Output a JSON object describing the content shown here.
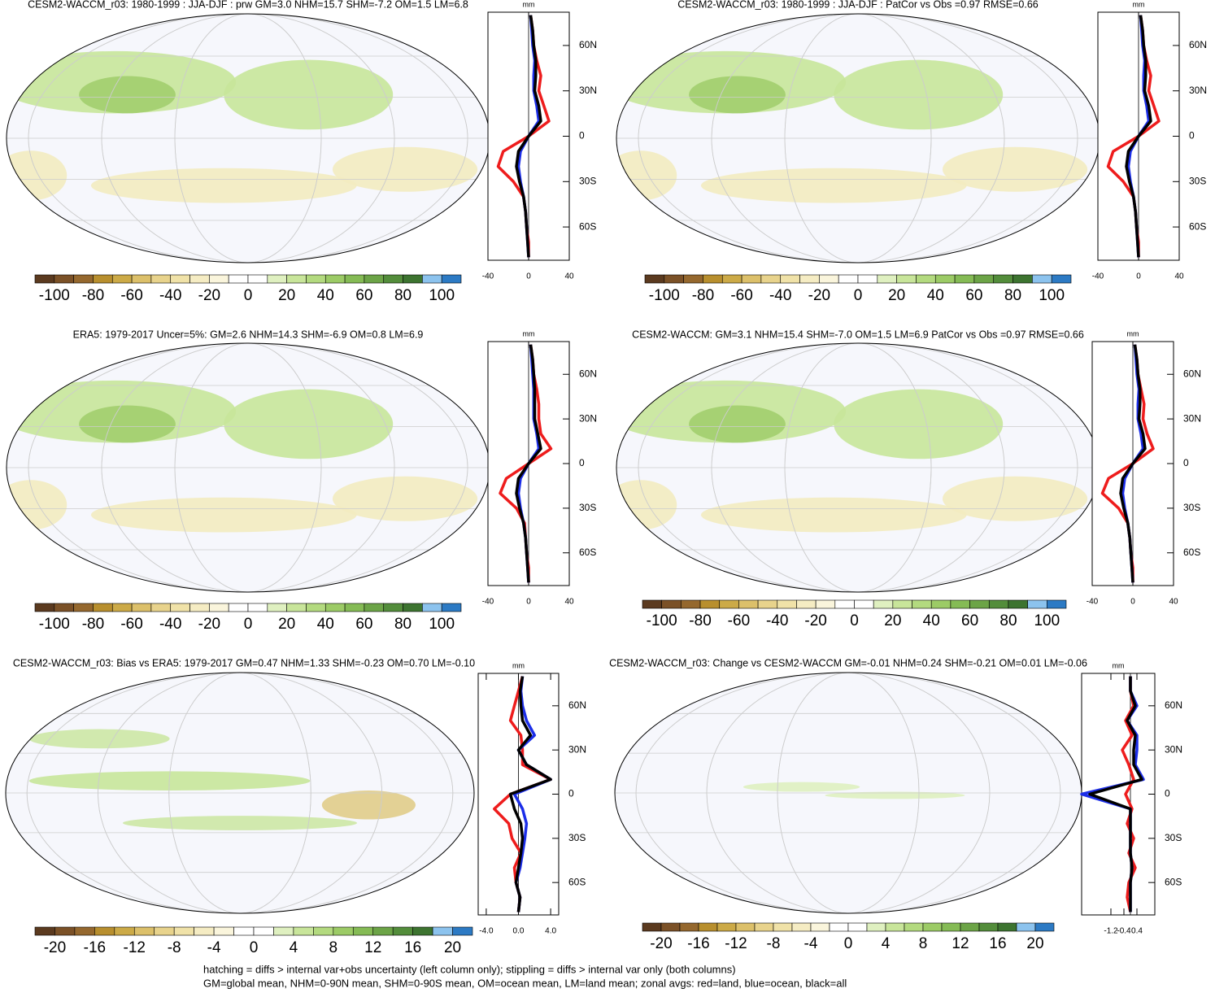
{
  "chart_data": {
    "type": "map-panels",
    "zonal_type": "line",
    "colors": [
      "#5b3a1f",
      "#7b5127",
      "#95682e",
      "#b88f2e",
      "#ccaa47",
      "#dcc06a",
      "#e8d38c",
      "#f0e2a8",
      "#f5ecc3",
      "#faf5dc",
      "#ffffff",
      "#ffffff",
      "#dff0c0",
      "#c8e59a",
      "#b3da7f",
      "#9ccb66",
      "#85bb55",
      "#6ca447",
      "#538d3b",
      "#3d7430",
      "#8cc3ee",
      "#2c7ac4"
    ],
    "panels": [
      {
        "title": "CESM2-WACCM_r03: 1980-1999 : JJA-DJF : prw GM=3.0 NHM=15.7 SHM=-7.2 OM=1.5 LM=6.8",
        "zonal_unit": "mm",
        "colorbar_ticks": [
          -100,
          -80,
          -60,
          -40,
          -20,
          0,
          20,
          40,
          60,
          80,
          100
        ],
        "xlim": [
          -40,
          40
        ],
        "xticks": [
          -40,
          0,
          40
        ],
        "ylim": [
          -82,
          82
        ],
        "yticks": [
          {
            "value": 60,
            "label": "60N"
          },
          {
            "value": 30,
            "label": "30N"
          },
          0,
          {
            "value": -30,
            "label": "30S"
          },
          {
            "value": -60,
            "label": "60S"
          }
        ],
        "x": [
          -80,
          -70,
          -60,
          -50,
          -40,
          -30,
          -20,
          -10,
          0,
          10,
          20,
          30,
          40,
          50,
          60,
          70,
          80
        ],
        "series": [
          {
            "color": "#ee1c1c",
            "values": [
              0,
              0,
              -2,
              -3,
              -5,
              -15,
              -30,
              -25,
              0,
              20,
              15,
              10,
              12,
              8,
              5,
              4,
              2
            ]
          },
          {
            "color": "#1c2ee8",
            "values": [
              0,
              -1,
              -2,
              -3,
              -5,
              -8,
              -10,
              -8,
              0,
              10,
              8,
              5,
              5,
              6,
              4,
              3,
              2
            ]
          },
          {
            "color": "#000000",
            "values": [
              0,
              -1,
              -2,
              -3,
              -5,
              -9,
              -12,
              -10,
              0,
              12,
              10,
              6,
              7,
              7,
              5,
              4,
              2
            ]
          }
        ]
      },
      {
        "title": "CESM2-WACCM_r03: 1980-1999 : JJA-DJF : PatCor vs Obs =0.97 RMSE=0.66",
        "zonal_unit": "mm",
        "colorbar_ticks": [
          -100,
          -80,
          -60,
          -40,
          -20,
          0,
          20,
          40,
          60,
          80,
          100
        ],
        "xlim": [
          -40,
          40
        ],
        "xticks": [
          -40,
          0,
          40
        ],
        "ylim": [
          -82,
          82
        ],
        "yticks": [
          {
            "value": 60,
            "label": "60N"
          },
          {
            "value": 30,
            "label": "30N"
          },
          0,
          {
            "value": -30,
            "label": "30S"
          },
          {
            "value": -60,
            "label": "60S"
          }
        ],
        "x": [
          -80,
          -70,
          -60,
          -50,
          -40,
          -30,
          -20,
          -10,
          0,
          10,
          20,
          30,
          40,
          50,
          60,
          70,
          80
        ],
        "series": [
          {
            "color": "#ee1c1c",
            "values": [
              0,
              0,
              -2,
              -3,
              -5,
              -15,
              -30,
              -25,
              0,
              20,
              15,
              10,
              12,
              8,
              5,
              4,
              2
            ]
          },
          {
            "color": "#1c2ee8",
            "values": [
              0,
              -1,
              -2,
              -3,
              -5,
              -8,
              -10,
              -8,
              0,
              10,
              8,
              5,
              5,
              6,
              4,
              3,
              2
            ]
          },
          {
            "color": "#000000",
            "values": [
              0,
              -1,
              -2,
              -3,
              -5,
              -9,
              -12,
              -10,
              0,
              12,
              10,
              6,
              7,
              7,
              5,
              4,
              2
            ]
          }
        ]
      },
      {
        "title": "ERA5: 1979-2017 Uncer=5%: GM=2.6 NHM=14.3 SHM=-6.9 OM=0.8 LM=6.9",
        "zonal_unit": "mm",
        "colorbar_ticks": [
          -100,
          -80,
          -60,
          -40,
          -20,
          0,
          20,
          40,
          60,
          80,
          100
        ],
        "xlim": [
          -40,
          40
        ],
        "xticks": [
          -40,
          0,
          40
        ],
        "ylim": [
          -82,
          82
        ],
        "yticks": [
          {
            "value": 60,
            "label": "60N"
          },
          {
            "value": 30,
            "label": "30N"
          },
          0,
          {
            "value": -30,
            "label": "30S"
          },
          {
            "value": -60,
            "label": "60S"
          }
        ],
        "x": [
          -80,
          -70,
          -60,
          -50,
          -40,
          -30,
          -20,
          -10,
          0,
          10,
          20,
          30,
          40,
          50,
          60,
          70,
          80
        ],
        "series": [
          {
            "color": "#ee1c1c",
            "values": [
              0,
              0,
              -2,
              -3,
              -4,
              -12,
              -28,
              -22,
              0,
              22,
              12,
              10,
              10,
              8,
              5,
              4,
              2
            ]
          },
          {
            "color": "#1c2ee8",
            "values": [
              0,
              -1,
              -2,
              -3,
              -5,
              -8,
              -10,
              -8,
              0,
              10,
              8,
              5,
              5,
              5,
              4,
              3,
              2
            ]
          },
          {
            "color": "#000000",
            "values": [
              0,
              -1,
              -2,
              -3,
              -5,
              -9,
              -12,
              -10,
              0,
              12,
              9,
              6,
              6,
              6,
              5,
              4,
              2
            ]
          }
        ]
      },
      {
        "title": "CESM2-WACCM: GM=3.1 NHM=15.4 SHM=-7.0 OM=1.5 LM=6.9 PatCor vs Obs =0.97 RMSE=0.66",
        "zonal_unit": "mm",
        "colorbar_ticks": [
          -100,
          -80,
          -60,
          -40,
          -20,
          0,
          20,
          40,
          60,
          80,
          100
        ],
        "xlim": [
          -40,
          40
        ],
        "xticks": [
          -40,
          0,
          40
        ],
        "ylim": [
          -82,
          82
        ],
        "yticks": [
          {
            "value": 60,
            "label": "60N"
          },
          {
            "value": 30,
            "label": "30N"
          },
          0,
          {
            "value": -30,
            "label": "30S"
          },
          {
            "value": -60,
            "label": "60S"
          }
        ],
        "x": [
          -80,
          -70,
          -60,
          -50,
          -40,
          -30,
          -20,
          -10,
          0,
          10,
          20,
          30,
          40,
          50,
          60,
          70,
          80
        ],
        "series": [
          {
            "color": "#ee1c1c",
            "values": [
              0,
              0,
              -2,
              -3,
              -5,
              -14,
              -30,
              -24,
              0,
              20,
              14,
              10,
              11,
              8,
              5,
              4,
              2
            ]
          },
          {
            "color": "#1c2ee8",
            "values": [
              0,
              -1,
              -2,
              -3,
              -5,
              -8,
              -10,
              -8,
              0,
              10,
              8,
              5,
              5,
              6,
              4,
              3,
              2
            ]
          },
          {
            "color": "#000000",
            "values": [
              0,
              -1,
              -2,
              -3,
              -5,
              -9,
              -12,
              -10,
              0,
              12,
              10,
              6,
              7,
              7,
              5,
              4,
              2
            ]
          }
        ]
      },
      {
        "title": "CESM2-WACCM_r03: Bias vs ERA5: 1979-2017 GM=0.47 NHM=1.33 SHM=-0.23 OM=0.70 LM=-0.10",
        "zonal_unit": "mm",
        "colorbar_ticks": [
          -20,
          -16,
          -12,
          -8,
          -4,
          0,
          4,
          8,
          12,
          16,
          20
        ],
        "xlim": [
          -5,
          5
        ],
        "xticks": [
          {
            "value": -4,
            "label": "-4.0"
          },
          {
            "value": 0,
            "label": "0.0"
          },
          {
            "value": 4,
            "label": "4.0"
          }
        ],
        "ylim": [
          -82,
          82
        ],
        "yticks": [
          {
            "value": 60,
            "label": "60N"
          },
          {
            "value": 30,
            "label": "30N"
          },
          0,
          {
            "value": -30,
            "label": "30S"
          },
          {
            "value": -60,
            "label": "60S"
          }
        ],
        "x": [
          -80,
          -70,
          -60,
          -50,
          -40,
          -30,
          -20,
          -10,
          0,
          10,
          20,
          30,
          40,
          50,
          60,
          70,
          80
        ],
        "series": [
          {
            "color": "#ee1c1c",
            "values": [
              0,
              0.2,
              -0.3,
              -0.5,
              0.3,
              -0.8,
              -1.2,
              -3,
              -1,
              4,
              0.5,
              0.5,
              0.3,
              -1,
              -0.5,
              0,
              0.5
            ]
          },
          {
            "color": "#1c2ee8",
            "values": [
              0,
              0.2,
              -0.3,
              0.2,
              0.5,
              0.8,
              1,
              0.5,
              -0.5,
              4,
              1,
              0,
              2,
              1,
              0.5,
              0.3,
              0.5
            ]
          },
          {
            "color": "#000000",
            "values": [
              0,
              0.2,
              -0.3,
              0,
              0.3,
              0.5,
              0.3,
              -0.5,
              -1,
              4,
              1,
              0,
              1.5,
              0.5,
              0.3,
              0.2,
              0.5
            ]
          }
        ]
      },
      {
        "title": "CESM2-WACCM_r03: Change vs CESM2-WACCM GM=-0.01 NHM=0.24 SHM=-0.21 OM=0.01 LM=-0.06",
        "zonal_unit": "mm",
        "colorbar_ticks": [
          -20,
          -16,
          -12,
          -8,
          -4,
          0,
          4,
          8,
          12,
          16,
          20
        ],
        "xlim": [
          -3,
          1.5
        ],
        "xticks": [
          -1.2,
          -0.4,
          0.4
        ],
        "ylim": [
          -82,
          82
        ],
        "yticks": [
          {
            "value": 60,
            "label": "60N"
          },
          {
            "value": 30,
            "label": "30N"
          },
          0,
          {
            "value": -30,
            "label": "30S"
          },
          {
            "value": -60,
            "label": "60S"
          }
        ],
        "x": [
          -80,
          -70,
          -60,
          -50,
          -40,
          -30,
          -20,
          -10,
          0,
          10,
          20,
          30,
          40,
          50,
          60,
          70,
          80
        ],
        "series": [
          {
            "color": "#ee1c1c",
            "values": [
              0,
              -0.2,
              -0.1,
              0.3,
              -0.1,
              0.2,
              -0.2,
              0.1,
              -0.3,
              0.2,
              -0.1,
              -0.5,
              0.1,
              -0.3,
              0.2,
              0,
              0
            ]
          },
          {
            "color": "#1c2ee8",
            "values": [
              0,
              0,
              0,
              0.1,
              0,
              0,
              0,
              0,
              -3,
              0.8,
              0.3,
              0.4,
              0.4,
              -0.2,
              0.4,
              0,
              0
            ]
          },
          {
            "color": "#000000",
            "values": [
              0,
              0,
              0,
              0.1,
              0,
              0,
              0,
              0,
              -2.5,
              0.7,
              0.2,
              0.2,
              0.3,
              -0.2,
              0.3,
              0,
              0
            ]
          }
        ]
      }
    ],
    "footnotes": [
      "hatching = diffs > internal var+obs uncertainty (left column only); stippling = diffs > internal var only (both columns)",
      "GM=global mean, NHM=0-90N mean, SHM=0-90S mean, OM=ocean mean, LM=land mean; zonal avgs: red=land, blue=ocean, black=all"
    ]
  }
}
